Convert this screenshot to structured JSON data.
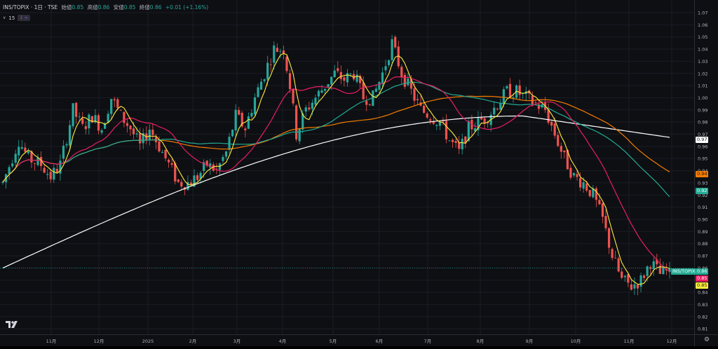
{
  "header": {
    "symbol": "INS/TOPIX · 1日 · TSE",
    "open_label": "始値",
    "open_value": "0.85",
    "high_label": "高値",
    "high_value": "0.86",
    "low_label": "安値",
    "low_value": "0.85",
    "close_label": "終値",
    "close_value": "0.86",
    "change": "+0.01 (+1.16%)"
  },
  "indicator_row": {
    "chevron_icon": "chevron-down-icon",
    "count": "15",
    "badge_number": "1",
    "badge_icon": "link-icon"
  },
  "price_axis": {
    "labels": [
      "1.07",
      "1.06",
      "1.05",
      "1.04",
      "1.03",
      "1.02",
      "1.01",
      "1.00",
      "0.99",
      "0.98",
      "0.97",
      "0.96",
      "0.95",
      "0.94",
      "0.93",
      "0.92",
      "0.91",
      "0.90",
      "0.89",
      "0.88",
      "0.87",
      "0.86",
      "0.85",
      "0.84",
      "0.83",
      "0.82",
      "0.81"
    ]
  },
  "time_axis": {
    "labels": [
      "11月",
      "12月",
      "2025",
      "2月",
      "3月",
      "4月",
      "5月",
      "6月",
      "7月",
      "8月",
      "9月",
      "10月",
      "11月",
      "12月"
    ]
  },
  "price_tags": {
    "ma_white": {
      "text": "0.97",
      "bg": "#ffffff",
      "fg": "#131722"
    },
    "ma_orange": {
      "text": "0.94",
      "bg": "#f57c00",
      "fg": "#131722"
    },
    "ma_teal": {
      "text": "0.92",
      "bg": "#22ab94",
      "fg": "#ffffff"
    },
    "symbol": {
      "text": "INS/TOPIX",
      "bg": "#22ab94",
      "fg": "#ffffff"
    },
    "last_price": {
      "text": "0.86",
      "bg": "#22ab94",
      "fg": "#ffffff"
    },
    "ma_pink": {
      "text": "0.85",
      "bg": "#e91e63",
      "fg": "#ffffff"
    },
    "ma_yellow": {
      "text": "0.85",
      "bg": "#ffeb3b",
      "fg": "#131722"
    }
  },
  "colors": {
    "up": "#26a69a",
    "down": "#ef5350",
    "ma_yellow": "#ffeb3b",
    "ma_pink": "#e91e63",
    "ma_teal": "#22ab94",
    "ma_orange": "#f57c00",
    "ma_white": "#ffffff"
  },
  "icons": {
    "logo": "tradingview-logo",
    "settings": "gear-icon"
  },
  "chart_data": {
    "type": "candlestick",
    "ylim": [
      0.81,
      1.07
    ],
    "x_labels": [
      "11月",
      "12月",
      "2025",
      "2月",
      "3月",
      "4月",
      "5月",
      "6月",
      "7月",
      "8月",
      "9月",
      "10月",
      "11月",
      "12月"
    ],
    "last_close": 0.86,
    "trend_anchors": [
      [
        0,
        0.93
      ],
      [
        5,
        0.965
      ],
      [
        8,
        0.95
      ],
      [
        12,
        0.945
      ],
      [
        15,
        0.935
      ],
      [
        18,
        0.945
      ],
      [
        22,
        0.99
      ],
      [
        25,
        0.975
      ],
      [
        28,
        0.985
      ],
      [
        31,
        0.975
      ],
      [
        34,
        1.0
      ],
      [
        37,
        0.985
      ],
      [
        40,
        0.975
      ],
      [
        43,
        0.96
      ],
      [
        46,
        0.975
      ],
      [
        49,
        0.96
      ],
      [
        52,
        0.945
      ],
      [
        55,
        0.93
      ],
      [
        58,
        0.93
      ],
      [
        61,
        0.935
      ],
      [
        64,
        0.945
      ],
      [
        67,
        0.94
      ],
      [
        70,
        0.955
      ],
      [
        73,
        0.985
      ],
      [
        76,
        0.975
      ],
      [
        79,
        1.0
      ],
      [
        82,
        1.02
      ],
      [
        85,
        1.04
      ],
      [
        88,
        1.04
      ],
      [
        90,
        1.01
      ],
      [
        92,
        0.97
      ],
      [
        95,
        0.99
      ],
      [
        98,
        1.0
      ],
      [
        101,
        1.01
      ],
      [
        104,
        1.02
      ],
      [
        107,
        1.015
      ],
      [
        110,
        1.02
      ],
      [
        113,
        1.0
      ],
      [
        116,
        1.0
      ],
      [
        119,
        1.02
      ],
      [
        122,
        1.045
      ],
      [
        125,
        1.02
      ],
      [
        128,
        1.005
      ],
      [
        131,
        0.99
      ],
      [
        134,
        0.985
      ],
      [
        137,
        0.98
      ],
      [
        140,
        0.965
      ],
      [
        143,
        0.955
      ],
      [
        146,
        0.975
      ],
      [
        149,
        0.98
      ],
      [
        152,
        0.985
      ],
      [
        155,
        0.995
      ],
      [
        158,
        1.005
      ],
      [
        161,
        1.005
      ],
      [
        164,
        1.0
      ],
      [
        167,
        0.995
      ],
      [
        170,
        0.99
      ],
      [
        173,
        0.97
      ],
      [
        176,
        0.95
      ],
      [
        179,
        0.935
      ],
      [
        182,
        0.93
      ],
      [
        185,
        0.92
      ],
      [
        188,
        0.9
      ],
      [
        191,
        0.87
      ],
      [
        194,
        0.85
      ],
      [
        197,
        0.845
      ],
      [
        200,
        0.85
      ],
      [
        203,
        0.865
      ],
      [
        206,
        0.855
      ],
      [
        209,
        0.858
      ]
    ],
    "moving_averages": [
      {
        "color": "#ffeb3b",
        "period": 5
      },
      {
        "color": "#e91e63",
        "period": 20
      },
      {
        "color": "#22ab94",
        "period": 50
      },
      {
        "color": "#f57c00",
        "period": 75
      },
      {
        "color": "#ffffff",
        "period": 200
      }
    ],
    "ma_tags": {
      "ma_white": 0.97,
      "ma_orange": 0.94,
      "ma_teal": 0.92,
      "ma_pink": 0.85,
      "ma_yellow": 0.85
    }
  }
}
